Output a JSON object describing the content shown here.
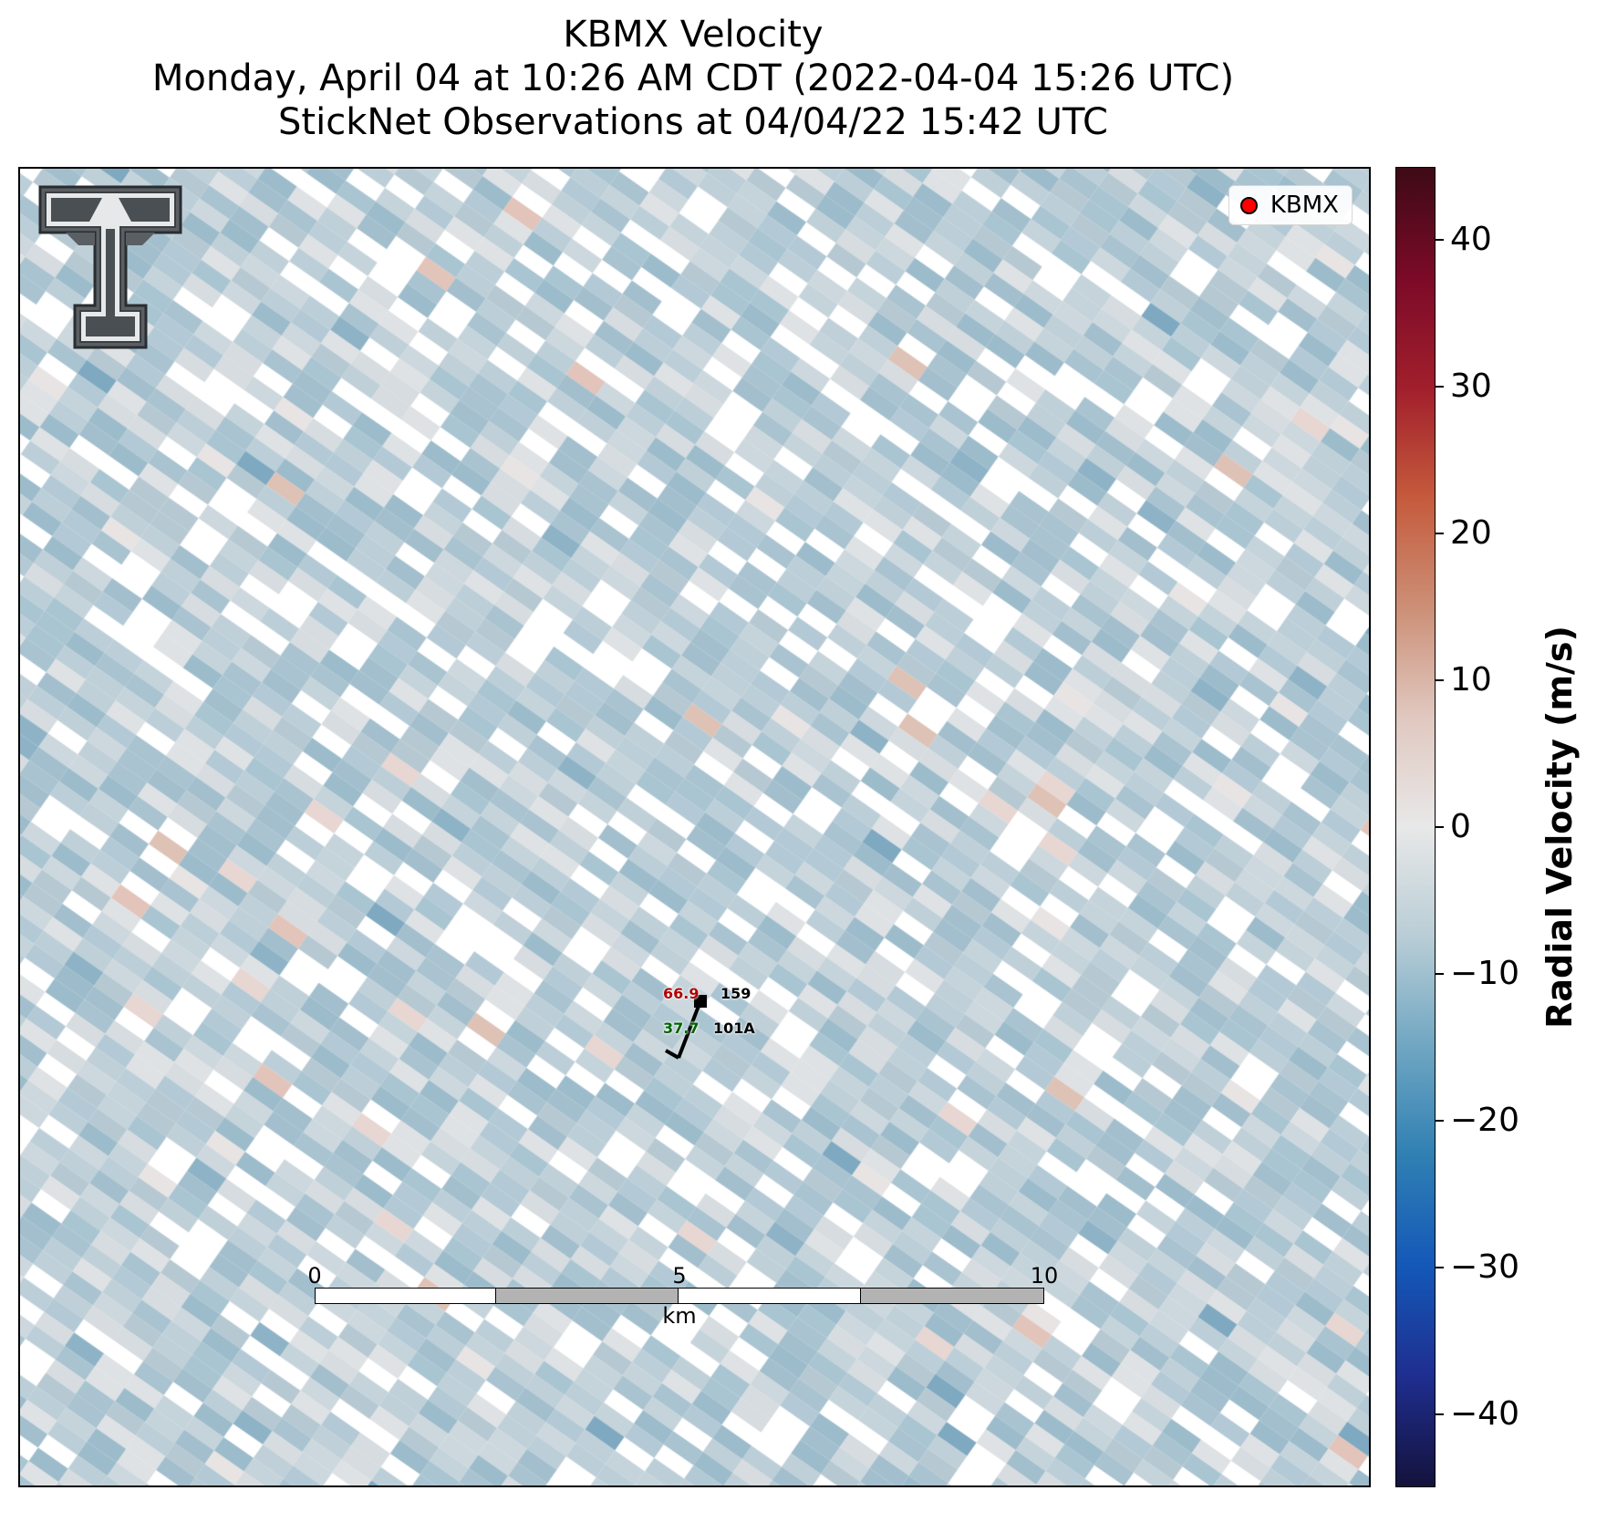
{
  "title": {
    "line1": "KBMX Velocity",
    "line2": "Monday, April 04 at 10:26 AM CDT (2022-04-04 15:26 UTC)",
    "line3": "StickNet Observations at 04/04/22 15:42 UTC"
  },
  "legend": {
    "label": "KBMX",
    "marker_color": "#ff0000"
  },
  "logo": {
    "name": "texas-tech-double-t-logo"
  },
  "stations": [
    {
      "id": "159",
      "value": "66.9",
      "value_color": "#b20000"
    },
    {
      "id": "101A",
      "value": "37.7",
      "value_color": "#006400"
    }
  ],
  "scalebar": {
    "ticks": [
      "0",
      "5",
      "10"
    ],
    "unit": "km"
  },
  "colorbar": {
    "label": "Radial Velocity (m/s)",
    "vmin": -45,
    "vmax": 45,
    "ticks": [
      "40",
      "30",
      "20",
      "10",
      "0",
      "−10",
      "−20",
      "−30",
      "−40"
    ],
    "tick_values": [
      40,
      30,
      20,
      10,
      0,
      -10,
      -20,
      -30,
      -40
    ],
    "colors": [
      "#14123c",
      "#1f2e8f",
      "#1458b8",
      "#2f7fb3",
      "#6fa6c2",
      "#b9cdd6",
      "#e8e8e8",
      "#e0c8c0",
      "#cc8f76",
      "#c55a3c",
      "#a11f2c",
      "#7b0a28",
      "#3d0a16"
    ]
  }
}
